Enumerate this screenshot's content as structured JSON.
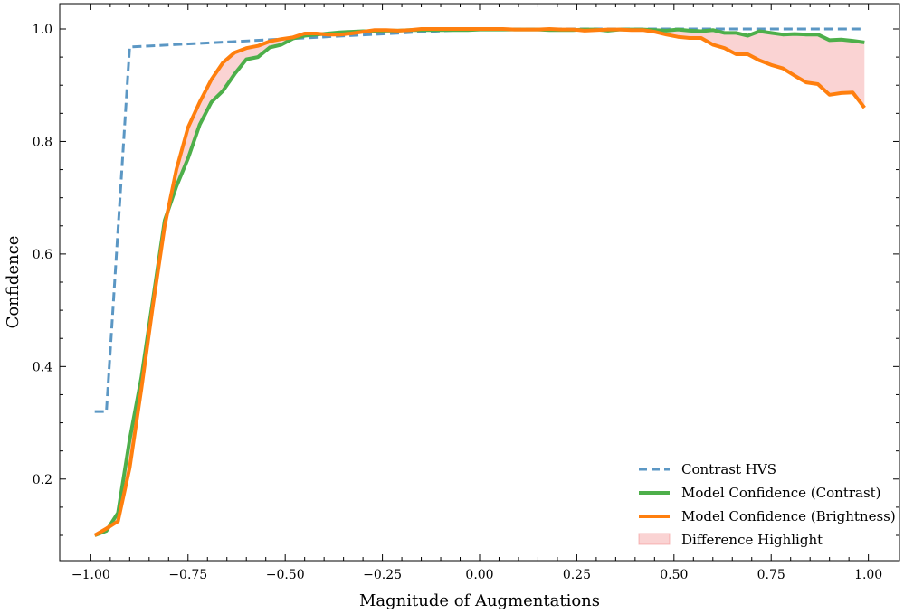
{
  "chart_data": {
    "type": "line",
    "title": "",
    "xlabel": "Magnitude of Augmentations",
    "ylabel": "Confidence",
    "xlim": [
      -1.08,
      1.08
    ],
    "ylim": [
      0.055,
      1.045
    ],
    "xticks": [
      -1.0,
      -0.75,
      -0.5,
      -0.25,
      0.0,
      0.25,
      0.5,
      0.75,
      1.0
    ],
    "xtick_labels": [
      "−1.00",
      "−0.75",
      "−0.50",
      "−0.25",
      "0.00",
      "0.25",
      "0.50",
      "0.75",
      "1.00"
    ],
    "yticks": [
      0.2,
      0.4,
      0.6,
      0.8,
      1.0
    ],
    "ytick_labels": [
      "0.2",
      "0.4",
      "0.6",
      "0.8",
      "1.0"
    ],
    "grid": false,
    "legend_position": "lower-right",
    "series": [
      {
        "name": "Contrast HVS",
        "style": "dashed",
        "color": "#5b97c4",
        "x": [
          -0.99,
          -0.96,
          -0.9,
          0.0,
          0.99
        ],
        "y": [
          0.32,
          0.32,
          0.968,
          1.0,
          1.0
        ]
      },
      {
        "name": "Model Confidence (Contrast)",
        "style": "solid",
        "color": "#4daf4a",
        "x": [
          -0.99,
          -0.96,
          -0.93,
          -0.9,
          -0.87,
          -0.84,
          -0.81,
          -0.78,
          -0.75,
          -0.72,
          -0.69,
          -0.66,
          -0.63,
          -0.6,
          -0.57,
          -0.54,
          -0.51,
          -0.48,
          -0.45,
          -0.42,
          -0.39,
          -0.36,
          -0.33,
          -0.3,
          -0.27,
          -0.24,
          -0.21,
          -0.18,
          -0.15,
          -0.12,
          -0.09,
          -0.06,
          -0.03,
          0.0,
          0.03,
          0.06,
          0.09,
          0.12,
          0.15,
          0.18,
          0.21,
          0.24,
          0.27,
          0.3,
          0.33,
          0.36,
          0.39,
          0.42,
          0.45,
          0.48,
          0.51,
          0.54,
          0.57,
          0.6,
          0.63,
          0.66,
          0.69,
          0.72,
          0.75,
          0.78,
          0.81,
          0.84,
          0.87,
          0.9,
          0.93,
          0.96,
          0.99
        ],
        "y": [
          0.1,
          0.108,
          0.14,
          0.27,
          0.38,
          0.52,
          0.66,
          0.72,
          0.77,
          0.83,
          0.87,
          0.89,
          0.92,
          0.946,
          0.95,
          0.967,
          0.972,
          0.983,
          0.988,
          0.99,
          0.992,
          0.994,
          0.995,
          0.996,
          0.996,
          0.997,
          0.997,
          0.998,
          0.998,
          0.998,
          0.998,
          0.998,
          0.998,
          0.999,
          0.999,
          0.999,
          0.999,
          0.999,
          0.999,
          0.998,
          0.998,
          0.998,
          0.999,
          0.999,
          0.997,
          0.999,
          0.999,
          0.999,
          0.998,
          0.997,
          0.999,
          0.997,
          0.996,
          0.998,
          0.993,
          0.993,
          0.988,
          0.996,
          0.993,
          0.99,
          0.991,
          0.99,
          0.99,
          0.98,
          0.981,
          0.979,
          0.976
        ]
      },
      {
        "name": "Model Confidence (Brightness)",
        "style": "solid",
        "color": "#ff7f0e",
        "x": [
          -0.99,
          -0.96,
          -0.93,
          -0.9,
          -0.87,
          -0.84,
          -0.81,
          -0.78,
          -0.75,
          -0.72,
          -0.69,
          -0.66,
          -0.63,
          -0.6,
          -0.57,
          -0.54,
          -0.51,
          -0.48,
          -0.45,
          -0.42,
          -0.39,
          -0.36,
          -0.33,
          -0.3,
          -0.27,
          -0.24,
          -0.21,
          -0.18,
          -0.15,
          -0.12,
          -0.09,
          -0.06,
          -0.03,
          0.0,
          0.03,
          0.06,
          0.09,
          0.12,
          0.15,
          0.18,
          0.21,
          0.24,
          0.27,
          0.3,
          0.33,
          0.36,
          0.39,
          0.42,
          0.45,
          0.48,
          0.51,
          0.54,
          0.57,
          0.6,
          0.63,
          0.66,
          0.69,
          0.72,
          0.75,
          0.78,
          0.81,
          0.84,
          0.87,
          0.9,
          0.93,
          0.96,
          0.99
        ],
        "y": [
          0.1,
          0.112,
          0.125,
          0.22,
          0.36,
          0.51,
          0.65,
          0.75,
          0.825,
          0.87,
          0.91,
          0.94,
          0.958,
          0.966,
          0.97,
          0.978,
          0.982,
          0.985,
          0.992,
          0.992,
          0.99,
          0.99,
          0.992,
          0.995,
          0.998,
          0.998,
          0.997,
          0.998,
          1.0,
          1.0,
          1.0,
          1.0,
          1.0,
          1.0,
          1.0,
          1.0,
          0.999,
          0.999,
          0.999,
          1.0,
          0.999,
          0.999,
          0.997,
          0.998,
          0.999,
          0.999,
          0.998,
          0.998,
          0.995,
          0.99,
          0.986,
          0.984,
          0.984,
          0.972,
          0.966,
          0.955,
          0.955,
          0.944,
          0.936,
          0.93,
          0.917,
          0.905,
          0.902,
          0.883,
          0.886,
          0.887,
          0.86
        ]
      }
    ],
    "fill": {
      "name": "Difference Highlight",
      "color": "#f08080",
      "opacity": 0.35,
      "between": [
        "Model Confidence (Contrast)",
        "Model Confidence (Brightness)"
      ]
    }
  }
}
